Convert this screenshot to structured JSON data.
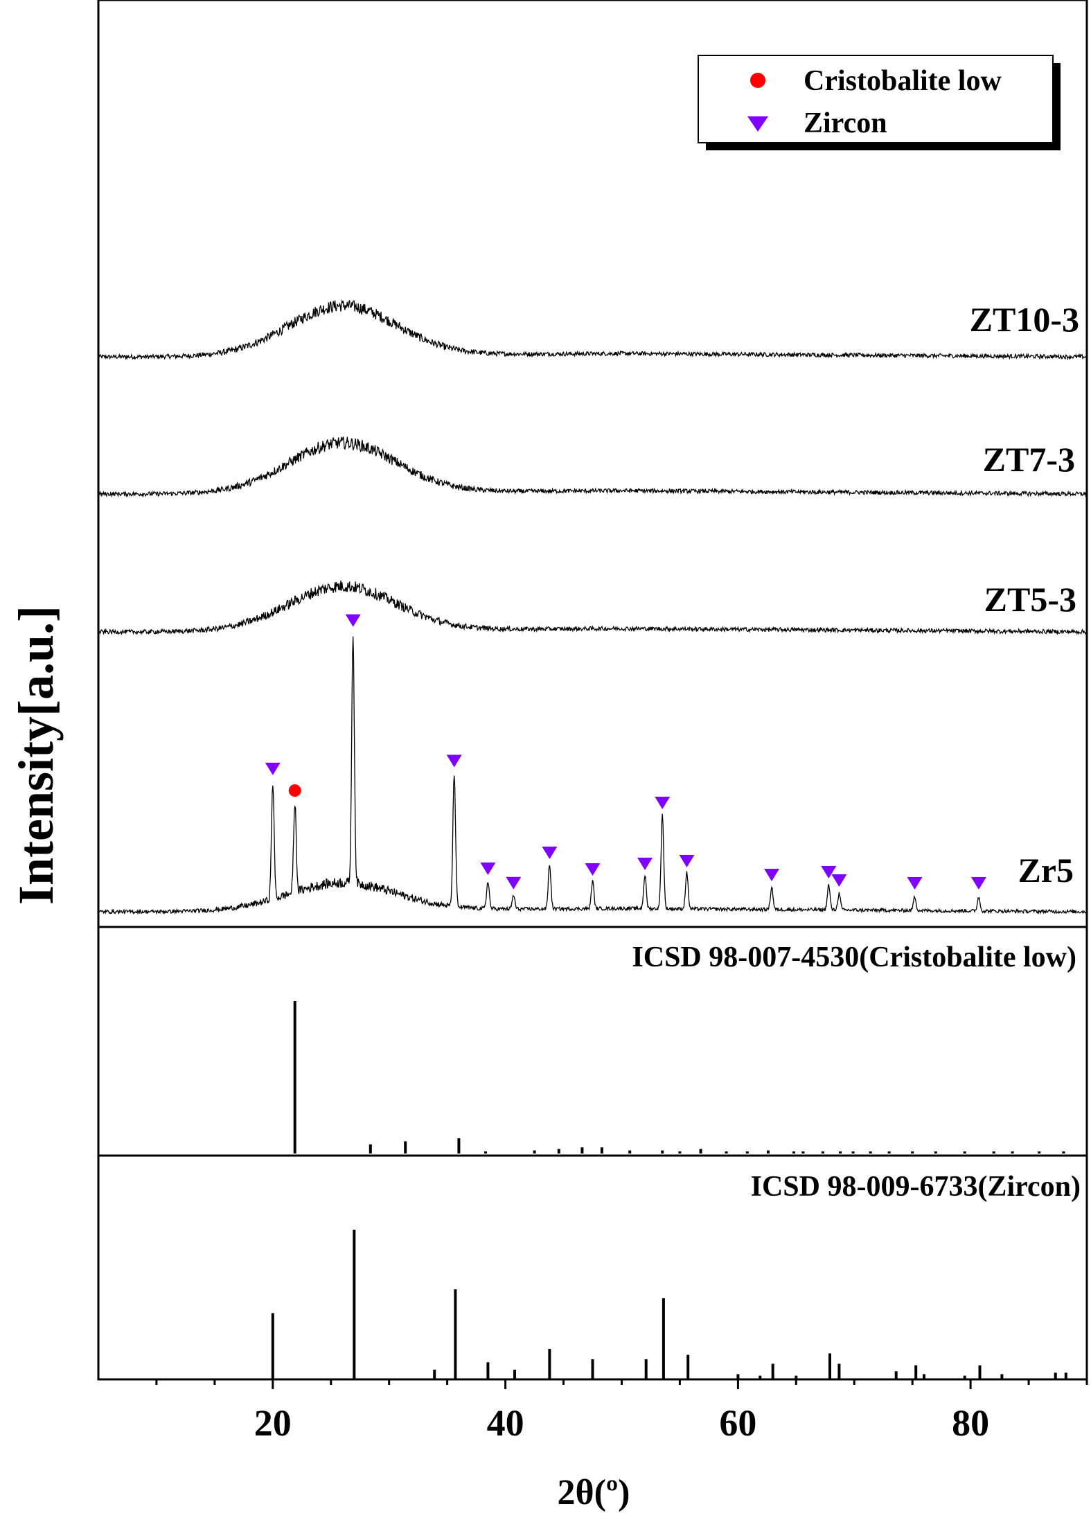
{
  "chart_data": {
    "type": "line",
    "xlabel": "2θ(º)",
    "ylabel": "Intensity[a.u.]",
    "xlim": [
      5,
      90
    ],
    "xticks": [
      20,
      40,
      60,
      80
    ],
    "grid": false,
    "legend": {
      "placement": "top-right",
      "entries": [
        {
          "label": "Cristobalite low",
          "marker": "circle",
          "color": "#ff0000"
        },
        {
          "label": "Zircon",
          "marker": "triangle-down",
          "color": "#7f00ff"
        }
      ]
    },
    "series": [
      {
        "name": "ZT10-3",
        "type": "amorphous-hump",
        "hump_center": 26,
        "hump_height": 0.18,
        "baseline": 0.05,
        "noise": 0.03
      },
      {
        "name": "ZT7-3",
        "type": "amorphous-hump",
        "hump_center": 26,
        "hump_height": 0.18,
        "baseline": 0.05,
        "noise": 0.03
      },
      {
        "name": "ZT5-3",
        "type": "amorphous-hump",
        "hump_center": 26,
        "hump_height": 0.16,
        "baseline": 0.05,
        "noise": 0.03
      },
      {
        "name": "Zr5",
        "type": "crystalline",
        "hump_center": 26,
        "hump_height": 0.1,
        "baseline": 0.04,
        "noise": 0.025,
        "peaks": [
          {
            "x": 20.0,
            "h": 0.42
          },
          {
            "x": 21.9,
            "h": 0.32
          },
          {
            "x": 26.9,
            "h": 0.9
          },
          {
            "x": 35.6,
            "h": 0.48
          },
          {
            "x": 38.5,
            "h": 0.1
          },
          {
            "x": 40.7,
            "h": 0.05
          },
          {
            "x": 43.8,
            "h": 0.16
          },
          {
            "x": 47.5,
            "h": 0.1
          },
          {
            "x": 52.0,
            "h": 0.12
          },
          {
            "x": 53.5,
            "h": 0.34
          },
          {
            "x": 55.6,
            "h": 0.13
          },
          {
            "x": 62.9,
            "h": 0.08
          },
          {
            "x": 67.8,
            "h": 0.09
          },
          {
            "x": 68.7,
            "h": 0.06
          },
          {
            "x": 75.2,
            "h": 0.05
          },
          {
            "x": 80.7,
            "h": 0.05
          }
        ]
      }
    ],
    "markers": [
      {
        "phase": "Cristobalite low",
        "x": 21.9
      },
      {
        "phase": "Zircon",
        "x": 20.0
      },
      {
        "phase": "Zircon",
        "x": 26.9
      },
      {
        "phase": "Zircon",
        "x": 35.6
      },
      {
        "phase": "Zircon",
        "x": 38.5
      },
      {
        "phase": "Zircon",
        "x": 40.7
      },
      {
        "phase": "Zircon",
        "x": 43.8
      },
      {
        "phase": "Zircon",
        "x": 47.5
      },
      {
        "phase": "Zircon",
        "x": 52.0
      },
      {
        "phase": "Zircon",
        "x": 53.5
      },
      {
        "phase": "Zircon",
        "x": 55.6
      },
      {
        "phase": "Zircon",
        "x": 62.9
      },
      {
        "phase": "Zircon",
        "x": 67.8
      },
      {
        "phase": "Zircon",
        "x": 68.7
      },
      {
        "phase": "Zircon",
        "x": 75.2
      },
      {
        "phase": "Zircon",
        "x": 80.7
      }
    ],
    "references": [
      {
        "label": "ICSD 98-007-4530(Cristobalite low)",
        "sticks": [
          {
            "x": 21.9,
            "h": 1.0
          },
          {
            "x": 28.4,
            "h": 0.06
          },
          {
            "x": 31.4,
            "h": 0.08
          },
          {
            "x": 36.0,
            "h": 0.1
          },
          {
            "x": 38.3,
            "h": 0.01
          },
          {
            "x": 42.5,
            "h": 0.02
          },
          {
            "x": 44.6,
            "h": 0.03
          },
          {
            "x": 46.6,
            "h": 0.04
          },
          {
            "x": 48.3,
            "h": 0.04
          },
          {
            "x": 50.7,
            "h": 0.02
          },
          {
            "x": 53.5,
            "h": 0.02
          },
          {
            "x": 55.0,
            "h": 0.01
          },
          {
            "x": 56.8,
            "h": 0.03
          },
          {
            "x": 59.0,
            "h": 0.01
          },
          {
            "x": 60.8,
            "h": 0.01
          },
          {
            "x": 62.6,
            "h": 0.02
          },
          {
            "x": 64.8,
            "h": 0.01
          },
          {
            "x": 65.6,
            "h": 0.01
          },
          {
            "x": 67.3,
            "h": 0.01
          },
          {
            "x": 68.8,
            "h": 0.01
          },
          {
            "x": 69.9,
            "h": 0.01
          },
          {
            "x": 71.4,
            "h": 0.01
          },
          {
            "x": 73.0,
            "h": 0.01
          },
          {
            "x": 75.0,
            "h": 0.01
          },
          {
            "x": 77.0,
            "h": 0.01
          },
          {
            "x": 79.5,
            "h": 0.01
          },
          {
            "x": 82.0,
            "h": 0.01
          },
          {
            "x": 83.6,
            "h": 0.01
          },
          {
            "x": 85.9,
            "h": 0.01
          },
          {
            "x": 88.0,
            "h": 0.01
          }
        ]
      },
      {
        "label": "ICSD 98-009-6733(Zircon)",
        "sticks": [
          {
            "x": 20.0,
            "h": 0.44
          },
          {
            "x": 27.0,
            "h": 1.0
          },
          {
            "x": 33.9,
            "h": 0.06
          },
          {
            "x": 35.7,
            "h": 0.6
          },
          {
            "x": 38.5,
            "h": 0.11
          },
          {
            "x": 40.8,
            "h": 0.06
          },
          {
            "x": 43.8,
            "h": 0.2
          },
          {
            "x": 47.5,
            "h": 0.13
          },
          {
            "x": 52.1,
            "h": 0.13
          },
          {
            "x": 53.6,
            "h": 0.54
          },
          {
            "x": 55.7,
            "h": 0.16
          },
          {
            "x": 60.0,
            "h": 0.03
          },
          {
            "x": 61.9,
            "h": 0.02
          },
          {
            "x": 63.0,
            "h": 0.1
          },
          {
            "x": 65.0,
            "h": 0.02
          },
          {
            "x": 67.9,
            "h": 0.17
          },
          {
            "x": 68.7,
            "h": 0.1
          },
          {
            "x": 73.6,
            "h": 0.05
          },
          {
            "x": 75.3,
            "h": 0.09
          },
          {
            "x": 76.0,
            "h": 0.03
          },
          {
            "x": 79.5,
            "h": 0.02
          },
          {
            "x": 80.8,
            "h": 0.09
          },
          {
            "x": 82.7,
            "h": 0.03
          },
          {
            "x": 87.3,
            "h": 0.04
          },
          {
            "x": 88.2,
            "h": 0.04
          }
        ]
      }
    ]
  }
}
